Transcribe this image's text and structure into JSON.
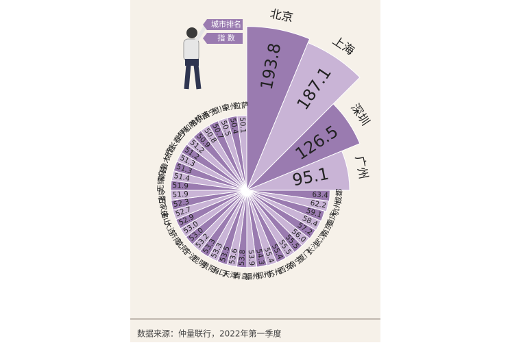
{
  "chart_data": {
    "type": "radial_bar",
    "legend_labels": [
      "城市排名",
      "指 数"
    ],
    "note": "数据来源：仲量联行，2022年第一季度",
    "categories": [
      "北京",
      "上海",
      "深圳",
      "广州",
      "成都",
      "杭州",
      "重庆",
      "南京",
      "武汉",
      "长沙",
      "厦门",
      "南宁",
      "西安",
      "苏州",
      "郑州",
      "福州",
      "青岛",
      "天津",
      "海口",
      "贵阳",
      "昆明",
      "宁波",
      "沈阳",
      "济南",
      "大连",
      "佛山",
      "石家庄",
      "合肥",
      "无锡",
      "南昌",
      "乌鲁木齐",
      "太原",
      "长春",
      "兰州",
      "呼和浩特",
      "哈尔滨",
      "西宁",
      "银川",
      "泉州",
      "拉萨"
    ],
    "values": [
      193.8,
      187.1,
      126.5,
      95.1,
      63.4,
      62.2,
      59.1,
      58.4,
      57.2,
      56.0,
      55.5,
      55.5,
      55.4,
      55.4,
      54.3,
      53.9,
      53.8,
      53.6,
      53.5,
      53.3,
      53.3,
      53.2,
      53.0,
      53.0,
      52.9,
      52.7,
      52.3,
      51.9,
      51.9,
      51.4,
      51.3,
      51.3,
      51.2,
      51.2,
      50.9,
      50.8,
      50.7,
      50.5,
      50.4,
      50.1
    ],
    "value_labels": [
      "193.8",
      "187.1",
      "126.5",
      "95.1",
      "63.4",
      "62.2",
      "59.1",
      "58.4",
      "57.2",
      "56.0",
      "55.5",
      "55.5",
      "55.4",
      "55.4",
      "54.3",
      "53.9",
      "53.8",
      "53.6",
      "53.5",
      "53.3",
      "53.3",
      "53.2",
      "53.0",
      "53.0",
      "52.9",
      "52.7",
      "52.3",
      "51.9",
      "51.9",
      "51.4",
      "51.3",
      "51.3",
      "51.2",
      "51.2",
      "50.9",
      "50.8",
      "50.7",
      "50.5",
      "50.4",
      "50.1"
    ],
    "colors": [
      "#9a7bb0",
      "#c9b4d6"
    ]
  }
}
